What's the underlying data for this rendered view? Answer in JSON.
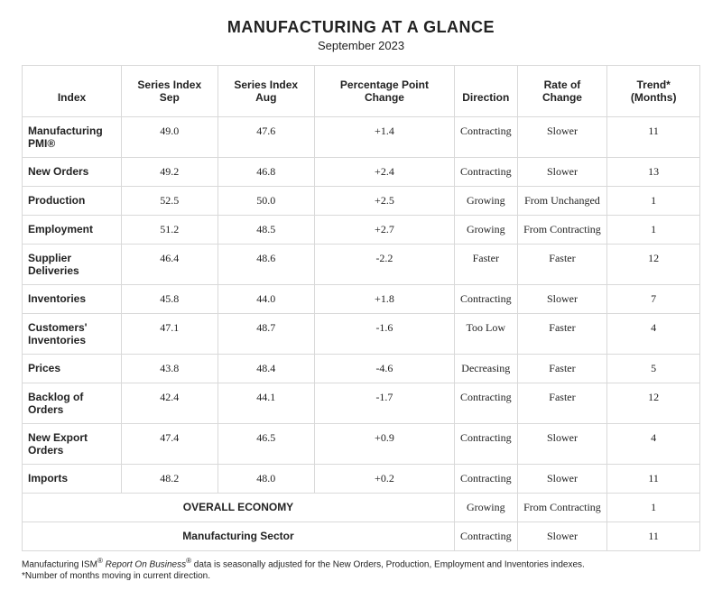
{
  "title": "MANUFACTURING AT A GLANCE",
  "subtitle": "September 2023",
  "columns": [
    "Index",
    "Series Index Sep",
    "Series Index Aug",
    "Percentage Point Change",
    "Direction",
    "Rate of Change",
    "Trend* (Months)"
  ],
  "rows": [
    {
      "index": "Manufacturing PMI®",
      "sep": "49.0",
      "aug": "47.6",
      "change": "+1.4",
      "direction": "Contracting",
      "rate": "Slower",
      "trend": "11"
    },
    {
      "index": "New Orders",
      "sep": "49.2",
      "aug": "46.8",
      "change": "+2.4",
      "direction": "Contracting",
      "rate": "Slower",
      "trend": "13"
    },
    {
      "index": "Production",
      "sep": "52.5",
      "aug": "50.0",
      "change": "+2.5",
      "direction": "Growing",
      "rate": "From Unchanged",
      "trend": "1"
    },
    {
      "index": "Employment",
      "sep": "51.2",
      "aug": "48.5",
      "change": "+2.7",
      "direction": "Growing",
      "rate": "From Contracting",
      "trend": "1"
    },
    {
      "index": "Supplier Deliveries",
      "sep": "46.4",
      "aug": "48.6",
      "change": "-2.2",
      "direction": "Faster",
      "rate": "Faster",
      "trend": "12"
    },
    {
      "index": "Inventories",
      "sep": "45.8",
      "aug": "44.0",
      "change": "+1.8",
      "direction": "Contracting",
      "rate": "Slower",
      "trend": "7"
    },
    {
      "index": "Customers' Inventories",
      "sep": "47.1",
      "aug": "48.7",
      "change": "-1.6",
      "direction": "Too Low",
      "rate": "Faster",
      "trend": "4"
    },
    {
      "index": "Prices",
      "sep": "43.8",
      "aug": "48.4",
      "change": "-4.6",
      "direction": "Decreasing",
      "rate": "Faster",
      "trend": "5"
    },
    {
      "index": "Backlog of Orders",
      "sep": "42.4",
      "aug": "44.1",
      "change": "-1.7",
      "direction": "Contracting",
      "rate": "Faster",
      "trend": "12"
    },
    {
      "index": "New Export Orders",
      "sep": "47.4",
      "aug": "46.5",
      "change": "+0.9",
      "direction": "Contracting",
      "rate": "Slower",
      "trend": "4"
    },
    {
      "index": "Imports",
      "sep": "48.2",
      "aug": "48.0",
      "change": "+0.2",
      "direction": "Contracting",
      "rate": "Slower",
      "trend": "11"
    }
  ],
  "summary": [
    {
      "label": "OVERALL ECONOMY",
      "direction": "Growing",
      "rate": "From Contracting",
      "trend": "1"
    },
    {
      "label": "Manufacturing Sector",
      "direction": "Contracting",
      "rate": "Slower",
      "trend": "11"
    }
  ],
  "footnote1_a": "Manufacturing ISM",
  "footnote1_b": " Report On Business",
  "footnote1_c": " data is seasonally adjusted for the New Orders, Production, Employment and Inventories indexes.",
  "footnote2": "*Number of months moving in current direction.",
  "colors": {
    "border": "#d9d9d9",
    "text": "#222222",
    "background": "#ffffff"
  }
}
